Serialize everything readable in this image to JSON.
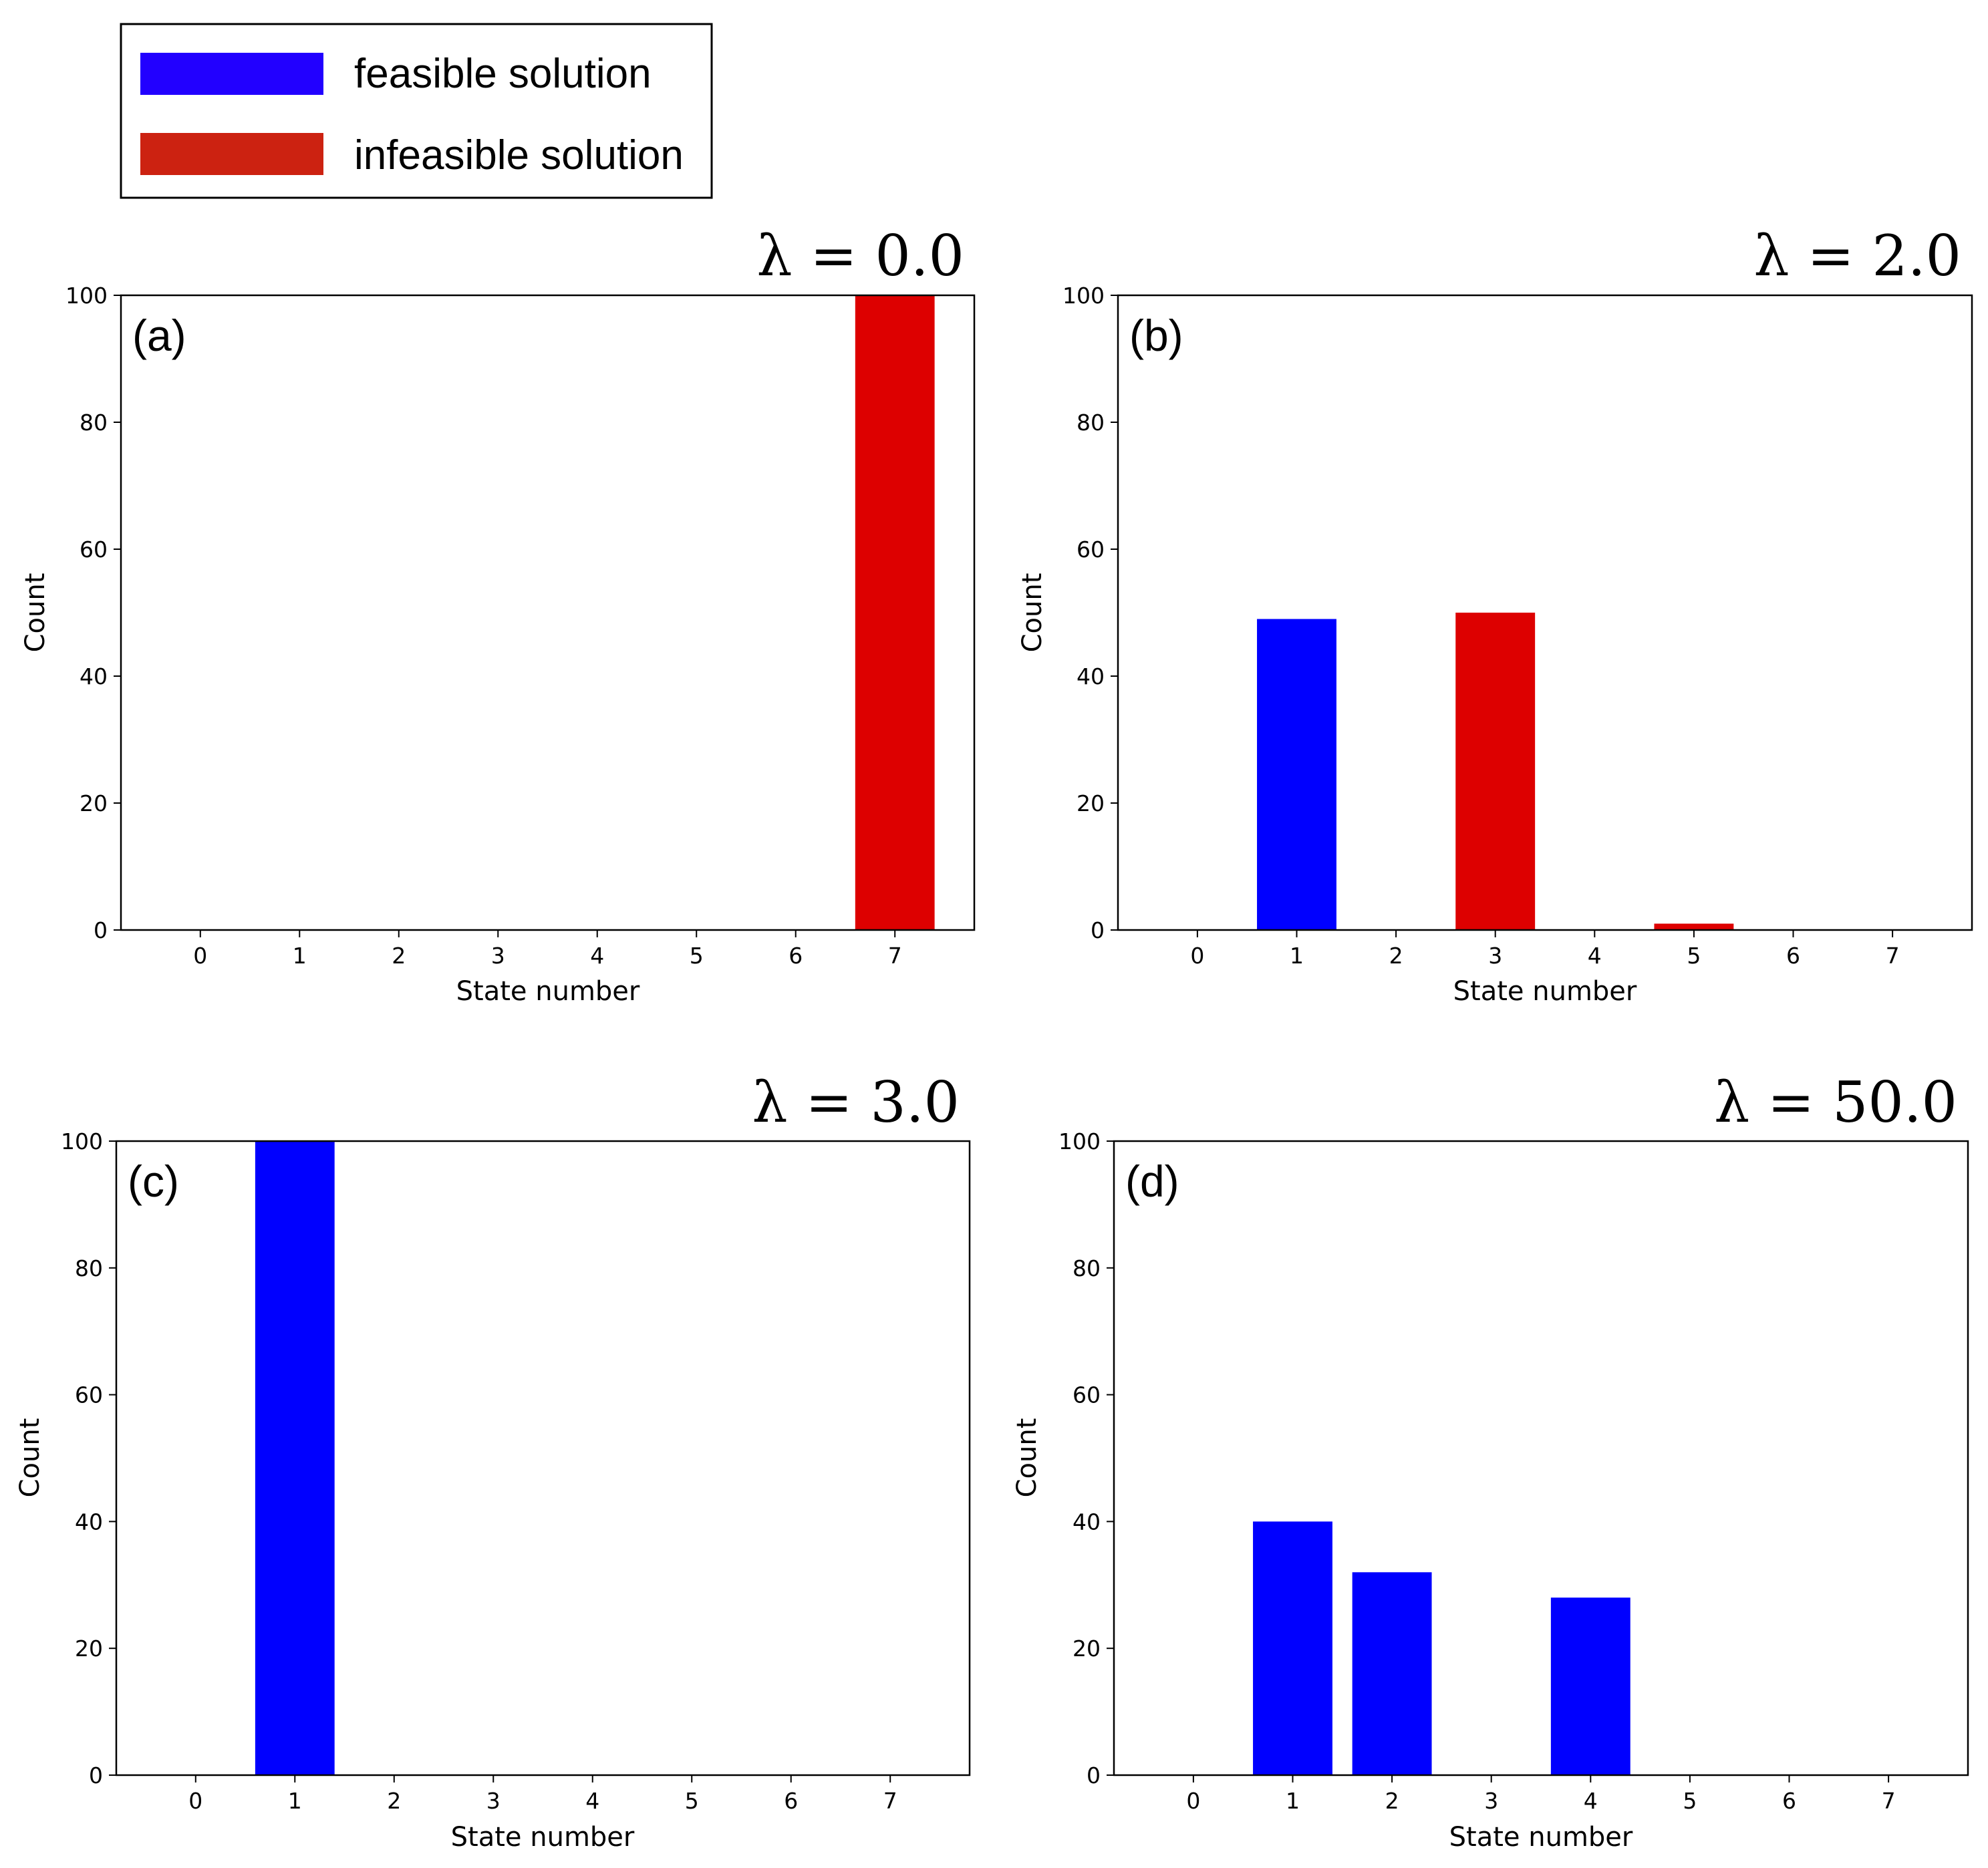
{
  "legend": {
    "items": [
      {
        "label": "feasible solution",
        "color": "#2200ff"
      },
      {
        "label": "infeasible solution",
        "color": "#cc2211"
      }
    ]
  },
  "colors": {
    "feasible": "#0000ff",
    "infeasible": "#dd0000"
  },
  "chart_data": [
    {
      "type": "bar",
      "panel_label": "(a)",
      "title": "λ = 0.0",
      "xlabel": "State number",
      "ylabel": "Count",
      "categories": [
        "0",
        "1",
        "2",
        "3",
        "4",
        "5",
        "6",
        "7"
      ],
      "yticks": [
        "0",
        "20",
        "40",
        "60",
        "80",
        "100"
      ],
      "ylim": [
        0,
        100
      ],
      "values": [
        0,
        0,
        0,
        0,
        0,
        0,
        0,
        100
      ],
      "feasible": [
        null,
        null,
        null,
        null,
        null,
        null,
        null,
        false
      ]
    },
    {
      "type": "bar",
      "panel_label": "(b)",
      "title": "λ = 2.0",
      "xlabel": "State number",
      "ylabel": "Count",
      "categories": [
        "0",
        "1",
        "2",
        "3",
        "4",
        "5",
        "6",
        "7"
      ],
      "yticks": [
        "0",
        "20",
        "40",
        "60",
        "80",
        "100"
      ],
      "ylim": [
        0,
        100
      ],
      "values": [
        0,
        49,
        0,
        50,
        0,
        1,
        0,
        0
      ],
      "feasible": [
        null,
        true,
        null,
        false,
        null,
        false,
        null,
        null
      ]
    },
    {
      "type": "bar",
      "panel_label": "(c)",
      "title": "λ = 3.0",
      "xlabel": "State number",
      "ylabel": "Count",
      "categories": [
        "0",
        "1",
        "2",
        "3",
        "4",
        "5",
        "6",
        "7"
      ],
      "yticks": [
        "0",
        "20",
        "40",
        "60",
        "80",
        "100"
      ],
      "ylim": [
        0,
        100
      ],
      "values": [
        0,
        100,
        0,
        0,
        0,
        0,
        0,
        0
      ],
      "feasible": [
        null,
        true,
        null,
        null,
        null,
        null,
        null,
        null
      ]
    },
    {
      "type": "bar",
      "panel_label": "(d)",
      "title": "λ = 50.0",
      "xlabel": "State number",
      "ylabel": "Count",
      "categories": [
        "0",
        "1",
        "2",
        "3",
        "4",
        "5",
        "6",
        "7"
      ],
      "yticks": [
        "0",
        "20",
        "40",
        "60",
        "80",
        "100"
      ],
      "ylim": [
        0,
        100
      ],
      "values": [
        0,
        40,
        32,
        0,
        28,
        0,
        0,
        0
      ],
      "feasible": [
        null,
        true,
        true,
        null,
        true,
        null,
        null,
        null
      ]
    }
  ]
}
